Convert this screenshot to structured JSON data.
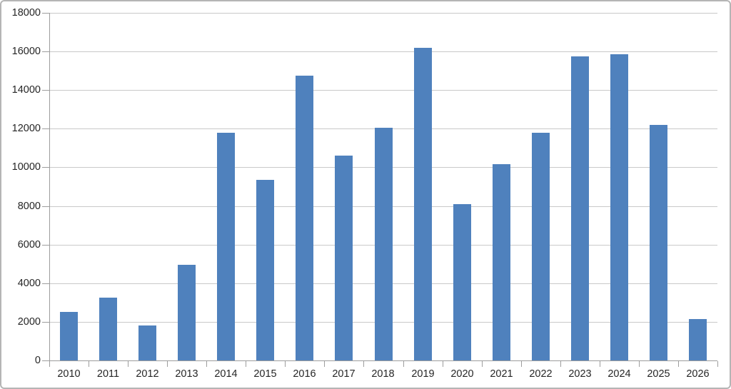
{
  "chart_data": {
    "type": "bar",
    "title": "",
    "xlabel": "",
    "ylabel": "",
    "categories": [
      "2010",
      "2011",
      "2012",
      "2013",
      "2014",
      "2015",
      "2016",
      "2017",
      "2018",
      "2019",
      "2020",
      "2021",
      "2022",
      "2023",
      "2024",
      "2025",
      "2026"
    ],
    "values": [
      2500,
      3250,
      1800,
      4950,
      11800,
      9350,
      14750,
      10600,
      12050,
      16200,
      8100,
      10150,
      11800,
      15750,
      15850,
      12200,
      2150
    ],
    "ylim": [
      0,
      18000
    ],
    "ytick_step": 2000,
    "y_tick_labels": [
      "0",
      "2000",
      "4000",
      "6000",
      "8000",
      "10000",
      "12000",
      "14000",
      "16000",
      "18000"
    ],
    "grid": true,
    "legend": false
  },
  "colors": {
    "bar": "#4f81bd",
    "gridline": "#c9c9c9",
    "axis": "#9d9d9d",
    "text": "#262626",
    "border": "#b5b5b5",
    "background": "#ffffff"
  }
}
